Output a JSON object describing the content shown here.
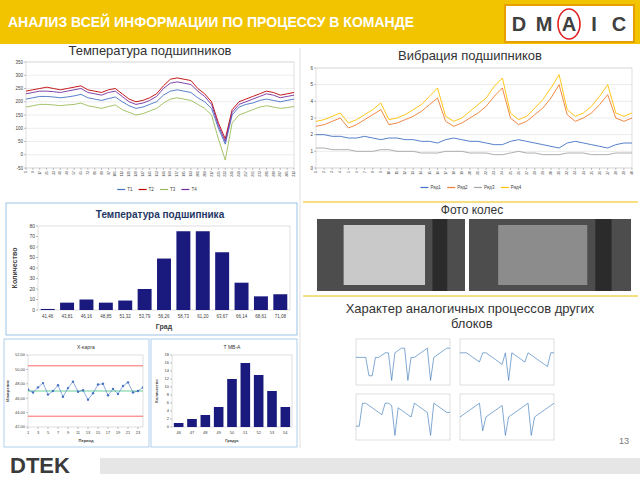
{
  "slide": {
    "header": {
      "title": "АНАЛИЗ ВСЕЙ ИНФОРМАЦИИ ПО ПРОЦЕССУ В КОМАНДЕ",
      "dmaic": {
        "letters": [
          "D",
          "M",
          "A",
          "I",
          "C"
        ],
        "current": "A"
      }
    },
    "photo_caption": "Фото колес",
    "similar_title": "Характер аналогичных процессов других блоков",
    "page": "13",
    "logo": "DTEK"
  },
  "chart_data": [
    {
      "type": "line",
      "title": "Температура подшипников",
      "x": [
        1,
        9,
        17,
        25,
        33,
        41,
        49,
        57,
        65,
        73,
        81,
        89,
        97,
        105,
        113,
        121,
        129,
        137,
        145,
        153,
        161,
        169,
        177,
        185,
        193,
        201,
        209,
        217,
        225,
        233,
        241,
        249,
        257,
        265,
        273,
        281,
        289,
        297,
        305,
        313
      ],
      "xlim": [
        1,
        313
      ],
      "xticks": [
        1,
        9,
        17,
        25,
        33,
        41,
        49,
        57,
        65,
        73,
        81,
        89,
        97,
        105,
        113,
        121,
        129,
        137,
        145,
        153,
        161,
        169,
        177,
        185,
        193,
        201,
        209,
        217,
        225,
        233,
        241,
        249,
        257,
        265,
        273,
        281,
        289,
        297,
        305,
        313
      ],
      "ylim": [
        -50,
        350
      ],
      "yticks": [
        -50,
        0,
        50,
        100,
        150,
        200,
        250,
        300,
        350
      ],
      "grid": true,
      "legend": "bottom",
      "series": [
        {
          "name": "T1",
          "color": "#4472c4",
          "values": [
            210,
            215,
            220,
            220,
            218,
            215,
            218,
            222,
            228,
            215,
            210,
            205,
            212,
            218,
            200,
            185,
            175,
            180,
            190,
            200,
            225,
            240,
            245,
            240,
            235,
            215,
            200,
            175,
            100,
            40,
            150,
            180,
            190,
            195,
            205,
            210,
            205,
            200,
            205,
            210
          ]
        },
        {
          "name": "T2",
          "color": "#c00000",
          "values": [
            240,
            245,
            250,
            255,
            250,
            245,
            250,
            255,
            260,
            245,
            240,
            235,
            245,
            250,
            230,
            210,
            200,
            205,
            215,
            230,
            260,
            285,
            290,
            285,
            280,
            250,
            230,
            200,
            120,
            60,
            170,
            200,
            210,
            220,
            230,
            240,
            235,
            225,
            230,
            235
          ]
        },
        {
          "name": "T3",
          "color": "#9bbb59",
          "values": [
            180,
            185,
            190,
            190,
            188,
            185,
            188,
            190,
            195,
            185,
            180,
            175,
            182,
            188,
            170,
            160,
            150,
            155,
            165,
            175,
            195,
            210,
            215,
            210,
            205,
            190,
            175,
            150,
            60,
            -20,
            120,
            150,
            160,
            170,
            180,
            185,
            180,
            175,
            178,
            182
          ]
        },
        {
          "name": "T4",
          "color": "#7030a0",
          "values": [
            230,
            235,
            240,
            240,
            238,
            235,
            240,
            245,
            250,
            235,
            230,
            225,
            235,
            240,
            220,
            200,
            190,
            195,
            205,
            220,
            250,
            270,
            275,
            270,
            265,
            240,
            220,
            190,
            110,
            50,
            160,
            190,
            200,
            210,
            220,
            230,
            225,
            215,
            220,
            225
          ]
        }
      ]
    },
    {
      "type": "line",
      "title": "Вибрация подшипников",
      "x": [
        1,
        2,
        3,
        4,
        5,
        6,
        7,
        8,
        9,
        10,
        11,
        12,
        13,
        14,
        15,
        16,
        17,
        18,
        19,
        20,
        21,
        22,
        23,
        24,
        25,
        26,
        27,
        28,
        29,
        30,
        31,
        32,
        33,
        34,
        35,
        36,
        37,
        38,
        39,
        40
      ],
      "xlim": [
        1,
        40
      ],
      "xticks": [
        1,
        2,
        3,
        4,
        5,
        6,
        7,
        8,
        9,
        10,
        11,
        12,
        13,
        14,
        15,
        16,
        17,
        18,
        19,
        20,
        21,
        22,
        23,
        24,
        25,
        26,
        27,
        28,
        29,
        30,
        31,
        32,
        33,
        34,
        35,
        36,
        37,
        38,
        39,
        40
      ],
      "ylim": [
        0,
        6
      ],
      "yticks": [
        0,
        1,
        2,
        3,
        4,
        5,
        6
      ],
      "grid": true,
      "legend": "bottom",
      "series": [
        {
          "name": "Ряд1",
          "color": "#4472c4",
          "values": [
            2.0,
            2.0,
            1.9,
            1.9,
            1.8,
            1.8,
            1.9,
            1.8,
            1.7,
            1.8,
            1.8,
            1.7,
            1.7,
            1.6,
            1.6,
            1.5,
            1.7,
            1.8,
            1.7,
            1.6,
            1.6,
            1.5,
            1.4,
            1.4,
            1.6,
            1.7,
            1.6,
            1.5,
            1.4,
            1.3,
            1.2,
            1.5,
            1.6,
            1.5,
            1.4,
            1.3,
            1.2,
            1.4,
            1.5,
            1.5
          ]
        },
        {
          "name": "Ряд2",
          "color": "#ed7d31",
          "values": [
            2.5,
            2.6,
            2.8,
            3.0,
            2.4,
            2.6,
            2.9,
            3.2,
            3.5,
            2.6,
            2.7,
            2.9,
            3.1,
            3.4,
            3.8,
            4.2,
            2.8,
            2.5,
            2.7,
            3.0,
            3.3,
            3.7,
            4.3,
            4.8,
            3.0,
            2.6,
            2.8,
            3.2,
            3.6,
            4.2,
            5.0,
            3.2,
            2.8,
            3.0,
            3.3,
            3.8,
            4.4,
            3.0,
            2.8,
            3.0
          ]
        },
        {
          "name": "Ряд3",
          "color": "#a5a5a5",
          "values": [
            1.2,
            1.2,
            1.1,
            1.1,
            1.1,
            1,
            1,
            1,
            1.1,
            1.1,
            1,
            1,
            1,
            0.9,
            0.9,
            0.9,
            1,
            1,
            1,
            0.9,
            0.9,
            0.9,
            0.8,
            0.8,
            0.9,
            1,
            0.9,
            0.9,
            0.8,
            0.8,
            0.8,
            0.9,
            0.9,
            0.9,
            0.8,
            0.8,
            0.8,
            0.9,
            0.9,
            0.9
          ]
        },
        {
          "name": "Ряд4",
          "color": "#ffc000",
          "values": [
            2.8,
            2.9,
            3.1,
            3.3,
            2.7,
            2.9,
            3.2,
            3.5,
            3.9,
            2.9,
            3.0,
            3.2,
            3.5,
            3.8,
            4.3,
            4.8,
            3.1,
            2.8,
            3.0,
            3.4,
            3.8,
            4.2,
            4.9,
            5.4,
            3.3,
            2.9,
            3.1,
            3.6,
            4.1,
            4.8,
            5.6,
            3.5,
            3.1,
            3.3,
            3.7,
            4.3,
            5.0,
            3.3,
            3.1,
            3.3
          ]
        }
      ]
    },
    {
      "type": "bar",
      "title": "Температура подшипника",
      "x_label": "Град",
      "y_label": "Количество",
      "categories": [
        "41,46",
        "43,81",
        "46,16",
        "48,85",
        "51,32",
        "53,79",
        "56,26",
        "58,73",
        "61,20",
        "63,67",
        "66,14",
        "68,61",
        "71,08"
      ],
      "values": [
        1,
        7,
        10,
        7,
        9,
        20,
        49,
        75,
        75,
        55,
        26,
        13,
        15
      ],
      "color": "#1a1a7e",
      "ylim": [
        0,
        80
      ],
      "yticks": [
        0,
        10,
        20,
        30,
        40,
        50,
        60,
        70,
        80
      ],
      "grid": false
    },
    {
      "type": "line",
      "title": "X-карта",
      "x_label": "Период",
      "y_label": "Измерение",
      "x": [
        1,
        2,
        3,
        4,
        5,
        6,
        7,
        8,
        9,
        10,
        11,
        12,
        13,
        14,
        15,
        16,
        17,
        18,
        19,
        20,
        21,
        22,
        23,
        24
      ],
      "xlim": [
        1,
        24
      ],
      "xticks": [
        1,
        3,
        5,
        7,
        9,
        11,
        13,
        15,
        17,
        19,
        21,
        23
      ],
      "ylim": [
        42,
        52
      ],
      "yticks": [
        {
          "value": 42,
          "label": "42,00"
        },
        {
          "value": 44,
          "label": "44,00"
        },
        {
          "value": 46,
          "label": "46,00"
        },
        {
          "value": 48,
          "label": "48,00"
        },
        {
          "value": 50,
          "label": "50,00"
        },
        {
          "value": 52,
          "label": "52,00"
        }
      ],
      "grid": false,
      "series": [
        {
          "color": "#ff0000",
          "line_style": "solid",
          "values": [
            50.5,
            50.5,
            50.5,
            50.5,
            50.5,
            50.5,
            50.5,
            50.5,
            50.5,
            50.5,
            50.5,
            50.5,
            50.5,
            50.5,
            50.5,
            50.5,
            50.5,
            50.5,
            50.5,
            50.5,
            50.5,
            50.5,
            50.5,
            50.5
          ]
        },
        {
          "color": "#00b050",
          "line_style": "solid",
          "values": [
            47,
            47,
            47,
            47,
            47,
            47,
            47,
            47,
            47,
            47,
            47,
            47,
            47,
            47,
            47,
            47,
            47,
            47,
            47,
            47,
            47,
            47,
            47,
            47
          ]
        },
        {
          "color": "#ff0000",
          "line_style": "solid",
          "values": [
            43.5,
            43.5,
            43.5,
            43.5,
            43.5,
            43.5,
            43.5,
            43.5,
            43.5,
            43.5,
            43.5,
            43.5,
            43.5,
            43.5,
            43.5,
            43.5,
            43.5,
            43.5,
            43.5,
            43.5,
            43.5,
            43.5,
            43.5,
            43.5
          ]
        },
        {
          "color": "#4472c4",
          "marker": "circle",
          "values": [
            47.2,
            46.8,
            47.5,
            48.1,
            46.5,
            47.0,
            47.8,
            46.2,
            47.4,
            48.3,
            46.9,
            47.1,
            45.8,
            46.7,
            47.9,
            48.0,
            46.4,
            47.3,
            46.6,
            47.7,
            48.2,
            46.8,
            47.0,
            47.5
          ]
        }
      ]
    },
    {
      "type": "bar",
      "title": "Т МВ-А",
      "x_label": "Градус",
      "y_label": "Количество",
      "categories": [
        "46",
        "47",
        "48",
        "49",
        "50",
        "51",
        "52",
        "53",
        "54"
      ],
      "values": [
        1,
        2,
        3,
        5,
        12,
        16,
        13,
        9,
        5
      ],
      "color": "#1a1a7e",
      "ylim": [
        0,
        18
      ],
      "yticks": [
        0,
        2,
        4,
        6,
        8,
        10,
        12,
        14,
        16,
        18
      ],
      "grid": false
    },
    {
      "type": "line",
      "tick_labels": false,
      "x": [
        1,
        2,
        3,
        4,
        5,
        6,
        7,
        8,
        9,
        10,
        11,
        12,
        13,
        14,
        15,
        16,
        17,
        18,
        19,
        20,
        21,
        22,
        23,
        24,
        25,
        26,
        27,
        28,
        29,
        30
      ],
      "xlim": [
        1,
        30
      ],
      "ylim": [
        0,
        10
      ],
      "series": [
        {
          "color": "#2e6fb5",
          "values": [
            6,
            6,
            6,
            6,
            2,
            2,
            6,
            6,
            6.5,
            7,
            7,
            1,
            7,
            7.5,
            8,
            8,
            1,
            6,
            6,
            6.5,
            7,
            7.5,
            8,
            1,
            6,
            6.5,
            7,
            7.5,
            8,
            8
          ]
        }
      ]
    },
    {
      "type": "line",
      "tick_labels": false,
      "x": [
        1,
        2,
        3,
        4,
        5,
        6,
        7,
        8,
        9,
        10,
        11,
        12,
        13,
        14,
        15,
        16,
        17,
        18,
        19,
        20,
        21,
        22,
        23,
        24,
        25,
        26,
        27,
        28,
        29,
        30
      ],
      "xlim": [
        1,
        30
      ],
      "ylim": [
        0,
        10
      ],
      "series": [
        {
          "color": "#2e6fb5",
          "values": [
            7,
            7,
            7,
            6.5,
            6,
            5.5,
            5,
            7,
            7,
            6.5,
            6,
            5.5,
            5,
            4.5,
            7,
            1,
            7,
            6.5,
            6,
            5.5,
            5,
            7,
            6.5,
            6,
            5.5,
            5,
            4.5,
            4,
            7,
            7
          ]
        }
      ]
    },
    {
      "type": "line",
      "tick_labels": false,
      "x": [
        1,
        2,
        3,
        4,
        5,
        6,
        7,
        8,
        9,
        10,
        11,
        12,
        13,
        14,
        15,
        16,
        17,
        18,
        19,
        20,
        21,
        22,
        23,
        24,
        25,
        26,
        27,
        28,
        29,
        30
      ],
      "xlim": [
        1,
        30
      ],
      "ylim": [
        0,
        10
      ],
      "series": [
        {
          "color": "#2e6fb5",
          "values": [
            3,
            3,
            8,
            8,
            7.5,
            7,
            6.5,
            6,
            5.5,
            8,
            8,
            7.5,
            1,
            7,
            6.5,
            6,
            5.5,
            5,
            8,
            7.5,
            7,
            6.5,
            6,
            1,
            8,
            7.5,
            7,
            6.5,
            6,
            6
          ]
        }
      ]
    },
    {
      "type": "line",
      "tick_labels": false,
      "x": [
        1,
        2,
        3,
        4,
        5,
        6,
        7,
        8,
        9,
        10,
        11,
        12,
        13,
        14,
        15,
        16,
        17,
        18,
        19,
        20,
        21,
        22,
        23,
        24,
        25,
        26,
        27,
        28,
        29,
        30
      ],
      "xlim": [
        1,
        30
      ],
      "ylim": [
        0,
        10
      ],
      "series": [
        {
          "color": "#2e6fb5",
          "values": [
            5,
            5.5,
            6,
            6.5,
            7,
            7.5,
            8,
            2,
            5,
            5.5,
            6,
            6.5,
            7,
            7.5,
            1,
            5,
            5.5,
            6,
            6.5,
            7,
            7.5,
            8,
            1,
            5,
            5.5,
            6,
            6.5,
            7,
            7.5,
            8
          ]
        }
      ]
    }
  ]
}
